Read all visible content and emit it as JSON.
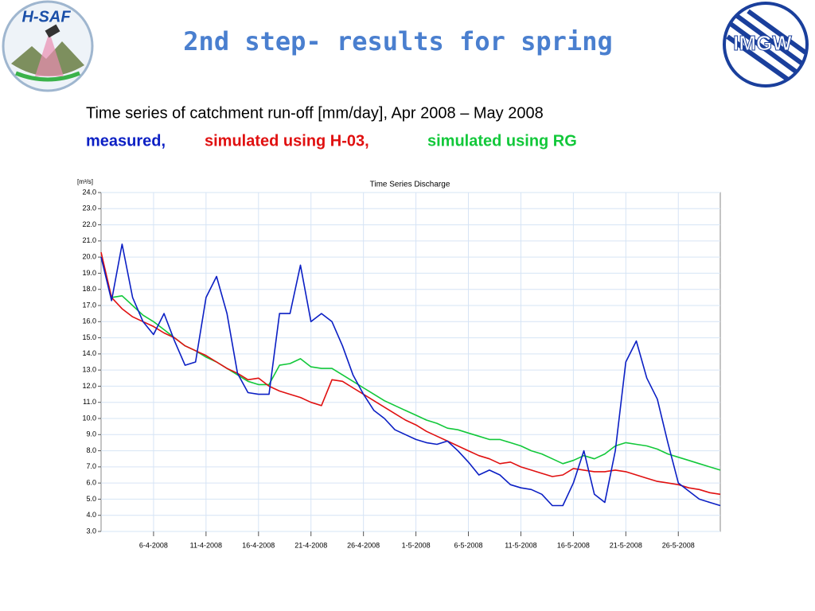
{
  "logos": {
    "left": "H-SAF",
    "right": "IMGW"
  },
  "title": "2nd step- results for spring",
  "subtitle": "Time series of catchment run-off [mm/day], Apr 2008 – May 2008",
  "chart_data": {
    "type": "line",
    "title": "Time Series Discharge",
    "y_label": "[m³/s]",
    "xlim": [
      "2008-04-01",
      "2008-05-30"
    ],
    "xticks": [
      {
        "value": "2008-04-06",
        "label": "6-4-2008"
      },
      {
        "value": "2008-04-11",
        "label": "11-4-2008"
      },
      {
        "value": "2008-04-16",
        "label": "16-4-2008"
      },
      {
        "value": "2008-04-21",
        "label": "21-4-2008"
      },
      {
        "value": "2008-04-26",
        "label": "26-4-2008"
      },
      {
        "value": "2008-05-01",
        "label": "1-5-2008"
      },
      {
        "value": "2008-05-06",
        "label": "6-5-2008"
      },
      {
        "value": "2008-05-11",
        "label": "11-5-2008"
      },
      {
        "value": "2008-05-16",
        "label": "16-5-2008"
      },
      {
        "value": "2008-05-21",
        "label": "21-5-2008"
      },
      {
        "value": "2008-05-26",
        "label": "26-5-2008"
      }
    ],
    "ylim": [
      3,
      24
    ],
    "yticks": [
      {
        "value": 3,
        "label": "3.0"
      },
      {
        "value": 4,
        "label": "4.0"
      },
      {
        "value": 5,
        "label": "5.0"
      },
      {
        "value": 6,
        "label": "6.0"
      },
      {
        "value": 7,
        "label": "7.0"
      },
      {
        "value": 8,
        "label": "8.0"
      },
      {
        "value": 9,
        "label": "9.0"
      },
      {
        "value": 10,
        "label": "10.0"
      },
      {
        "value": 11,
        "label": "11.0"
      },
      {
        "value": 12,
        "label": "12.0"
      },
      {
        "value": 13,
        "label": "13.0"
      },
      {
        "value": 14,
        "label": "14.0"
      },
      {
        "value": 15,
        "label": "15.0"
      },
      {
        "value": 16,
        "label": "16.0"
      },
      {
        "value": 17,
        "label": "17.0"
      },
      {
        "value": 18,
        "label": "18.0"
      },
      {
        "value": 19,
        "label": "19.0"
      },
      {
        "value": 20,
        "label": "20.0"
      },
      {
        "value": 21,
        "label": "21.0"
      },
      {
        "value": 22,
        "label": "22.0"
      },
      {
        "value": 23,
        "label": "23.0"
      },
      {
        "value": 24,
        "label": "24.0"
      }
    ],
    "grid": true,
    "x": [
      "2008-04-01",
      "2008-04-02",
      "2008-04-03",
      "2008-04-04",
      "2008-04-05",
      "2008-04-06",
      "2008-04-07",
      "2008-04-08",
      "2008-04-09",
      "2008-04-10",
      "2008-04-11",
      "2008-04-12",
      "2008-04-13",
      "2008-04-14",
      "2008-04-15",
      "2008-04-16",
      "2008-04-17",
      "2008-04-18",
      "2008-04-19",
      "2008-04-20",
      "2008-04-21",
      "2008-04-22",
      "2008-04-23",
      "2008-04-24",
      "2008-04-25",
      "2008-04-26",
      "2008-04-27",
      "2008-04-28",
      "2008-04-29",
      "2008-04-30",
      "2008-05-01",
      "2008-05-02",
      "2008-05-03",
      "2008-05-04",
      "2008-05-05",
      "2008-05-06",
      "2008-05-07",
      "2008-05-08",
      "2008-05-09",
      "2008-05-10",
      "2008-05-11",
      "2008-05-12",
      "2008-05-13",
      "2008-05-14",
      "2008-05-15",
      "2008-05-16",
      "2008-05-17",
      "2008-05-18",
      "2008-05-19",
      "2008-05-20",
      "2008-05-21",
      "2008-05-22",
      "2008-05-23",
      "2008-05-24",
      "2008-05-25",
      "2008-05-26",
      "2008-05-27",
      "2008-05-28",
      "2008-05-29",
      "2008-05-30"
    ],
    "series": [
      {
        "name": "measured,",
        "color": "#0b1fc4",
        "values": [
          20.0,
          17.3,
          20.8,
          17.5,
          16.0,
          15.2,
          16.5,
          14.8,
          13.3,
          13.5,
          17.5,
          18.8,
          16.5,
          12.8,
          11.6,
          11.5,
          11.5,
          16.5,
          16.5,
          19.5,
          16.0,
          16.5,
          16.0,
          14.5,
          12.7,
          11.5,
          10.5,
          10.0,
          9.3,
          9.0,
          8.7,
          8.5,
          8.4,
          8.6,
          8.0,
          7.3,
          6.5,
          6.8,
          6.5,
          5.9,
          5.7,
          5.6,
          5.3,
          4.6,
          4.6,
          6.0,
          8.0,
          5.3,
          4.8,
          8.0,
          13.5,
          14.8,
          12.5,
          11.2,
          8.5,
          6.0,
          5.5,
          5.0,
          4.8,
          4.6
        ]
      },
      {
        "name": "simulated using H-03,",
        "color": "#e01010",
        "values": [
          20.3,
          17.5,
          16.8,
          16.3,
          16.0,
          15.7,
          15.3,
          15.0,
          14.5,
          14.2,
          13.9,
          13.5,
          13.1,
          12.8,
          12.4,
          12.5,
          12.0,
          11.7,
          11.5,
          11.3,
          11.0,
          10.8,
          12.4,
          12.3,
          11.9,
          11.5,
          11.1,
          10.7,
          10.3,
          9.9,
          9.6,
          9.2,
          8.9,
          8.6,
          8.3,
          8.0,
          7.7,
          7.5,
          7.2,
          7.3,
          7.0,
          6.8,
          6.6,
          6.4,
          6.5,
          6.9,
          6.8,
          6.7,
          6.7,
          6.8,
          6.7,
          6.5,
          6.3,
          6.1,
          6.0,
          5.9,
          5.7,
          5.6,
          5.4,
          5.3
        ]
      },
      {
        "name": "simulated using RG",
        "color": "#12c83a",
        "values": [
          20.0,
          17.5,
          17.6,
          17.0,
          16.4,
          16.0,
          15.5,
          15.0,
          14.5,
          14.2,
          13.8,
          13.5,
          13.1,
          12.7,
          12.3,
          12.1,
          12.1,
          13.3,
          13.4,
          13.7,
          13.2,
          13.1,
          13.1,
          12.7,
          12.3,
          11.9,
          11.5,
          11.1,
          10.8,
          10.5,
          10.2,
          9.9,
          9.7,
          9.4,
          9.3,
          9.1,
          8.9,
          8.7,
          8.7,
          8.5,
          8.3,
          8.0,
          7.8,
          7.5,
          7.2,
          7.4,
          7.7,
          7.5,
          7.8,
          8.3,
          8.5,
          8.4,
          8.3,
          8.1,
          7.8,
          7.6,
          7.4,
          7.2,
          7.0,
          6.8
        ]
      }
    ]
  }
}
